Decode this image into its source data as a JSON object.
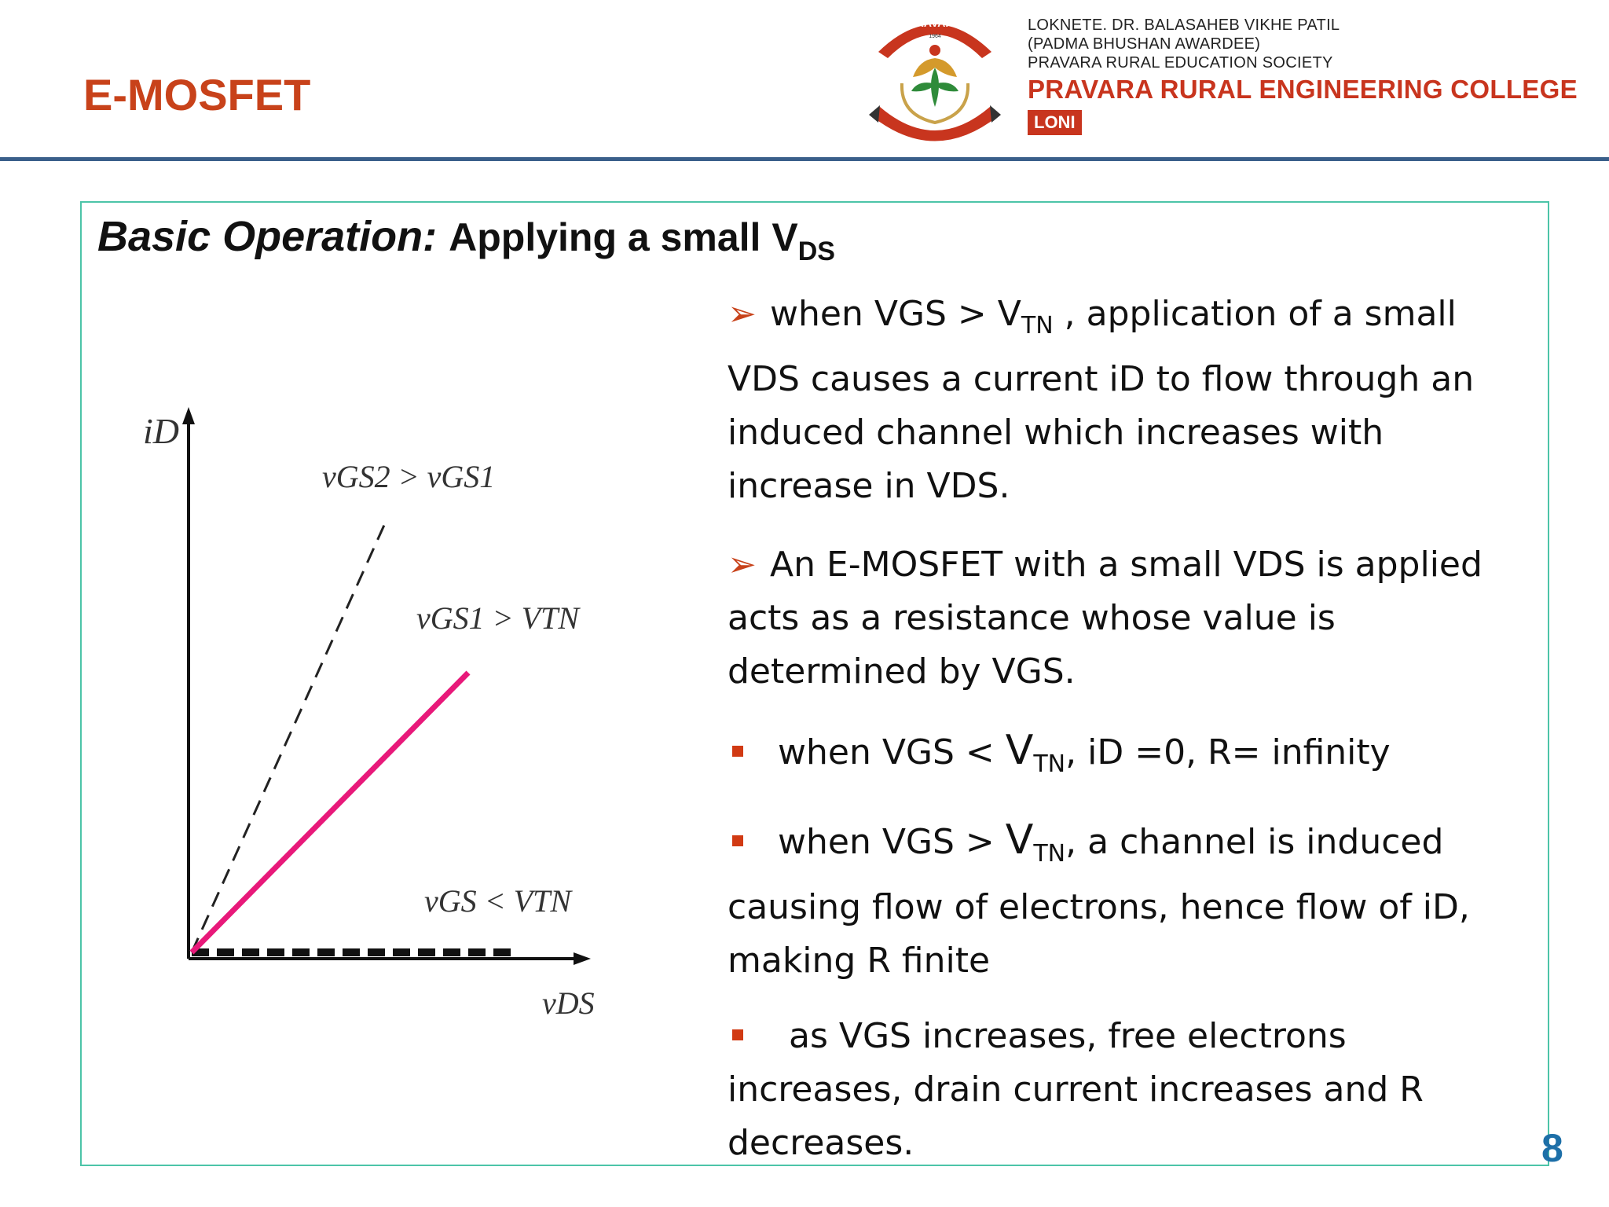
{
  "slide": {
    "title": "E-MOSFET",
    "page_number": "8"
  },
  "header": {
    "logo_arc_text": "PRAVARA",
    "logo_year": "1964",
    "college_lines": [
      "LOKNETE. DR. BALASAHEB VIKHE PATIL",
      "(PADMA BHUSHAN AWARDEE)",
      "PRAVARA RURAL EDUCATION SOCIETY"
    ],
    "college_name": "PRAVARA RURAL ENGINEERING COLLEGE",
    "college_location": "LONI"
  },
  "heading": {
    "italic_part": "Basic Operation:",
    "plain_part": "Applying a small V",
    "subscript": "DS"
  },
  "graph": {
    "y_axis_label": "iD",
    "x_axis_label": "vDS",
    "label_vgs2": "vGS2 > vGS1",
    "label_vgs1": "vGS1 > VTN",
    "label_vgs": "vGS < VTN"
  },
  "bullets": [
    {
      "kind": "arrow",
      "a": "when VGS > V",
      "sub": "TN",
      "b": " , application of a small VDS causes a current iD to flow through an induced channel which increases with increase in VDS."
    },
    {
      "kind": "arrow",
      "a": "An E-MOSFET with a small VDS is applied acts as a resistance whose value is determined by VGS.",
      "sub": "",
      "b": ""
    },
    {
      "kind": "square",
      "a": "when VGS < ",
      "big": "V",
      "sub": "TN",
      "b": ",  iD =0, R= infinity"
    },
    {
      "kind": "square",
      "a": "when VGS > ",
      "big": "V",
      "sub": "TN",
      "b": ",  a channel is induced causing flow of electrons, hence flow of iD, making R finite"
    },
    {
      "kind": "square",
      "a": " as VGS increases, free electrons increases, drain current increases and R decreases.",
      "sub": "",
      "b": ""
    }
  ],
  "colors": {
    "title": "#c8421a",
    "header_rule": "#3a5f8a",
    "box_border": "#4cc4a8",
    "pink_line": "#e8197a",
    "page_number": "#1d6fa8"
  }
}
